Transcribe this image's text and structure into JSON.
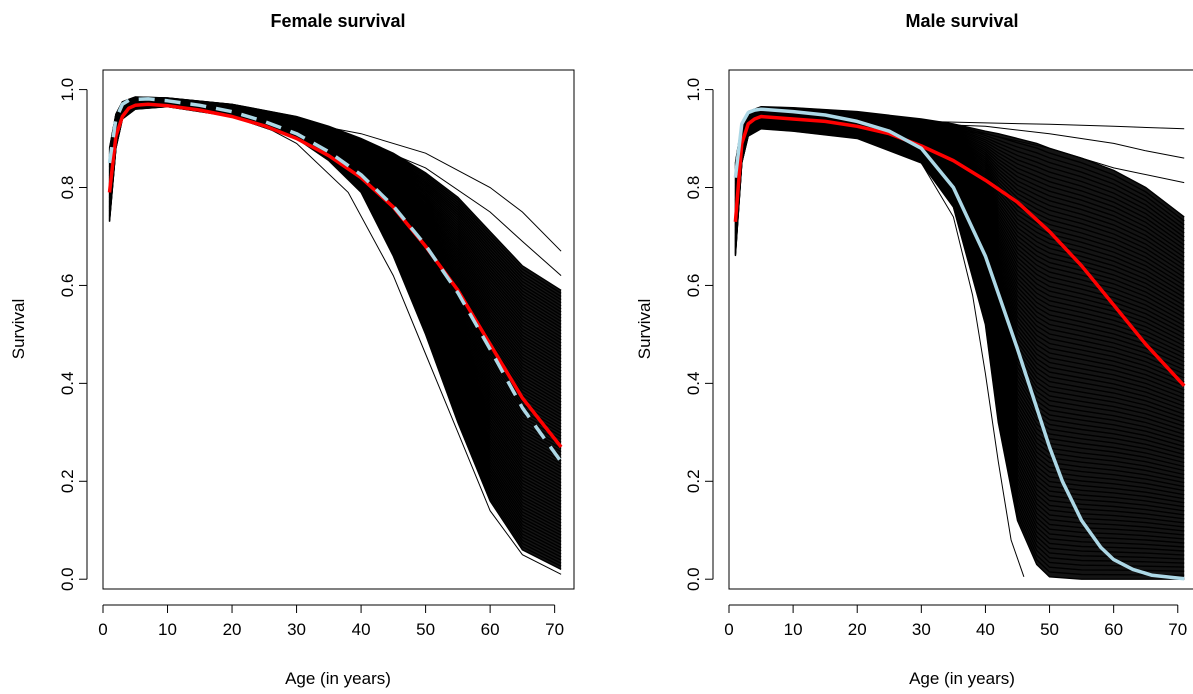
{
  "chart_data": [
    {
      "type": "line",
      "title": "Female survival",
      "xlabel": "Age (in years)",
      "ylabel": "Survival",
      "xlim": [
        0,
        73
      ],
      "ylim": [
        -0.02,
        1.04
      ],
      "xticks": [
        "0",
        "10",
        "20",
        "30",
        "40",
        "50",
        "60",
        "70"
      ],
      "yticks": [
        "0.0",
        "0.2",
        "0.4",
        "0.6",
        "0.8",
        "1.0"
      ],
      "grid": false,
      "legend": "none",
      "envelope": {
        "color": "#000000",
        "x": [
          1,
          2,
          3,
          5,
          10,
          20,
          30,
          35,
          40,
          45,
          50,
          55,
          60,
          65,
          71
        ],
        "upper": [
          0.88,
          0.95,
          0.975,
          0.985,
          0.983,
          0.97,
          0.945,
          0.925,
          0.9,
          0.87,
          0.83,
          0.78,
          0.71,
          0.64,
          0.59
        ],
        "lower": [
          0.73,
          0.88,
          0.94,
          0.96,
          0.965,
          0.945,
          0.9,
          0.855,
          0.79,
          0.66,
          0.5,
          0.32,
          0.16,
          0.06,
          0.02
        ]
      },
      "outliers": [
        {
          "x": [
            30,
            40,
            50,
            60,
            65,
            71
          ],
          "y": [
            0.935,
            0.91,
            0.87,
            0.8,
            0.75,
            0.67
          ]
        },
        {
          "x": [
            30,
            40,
            50,
            60,
            65,
            71
          ],
          "y": [
            0.925,
            0.895,
            0.84,
            0.75,
            0.69,
            0.62
          ]
        },
        {
          "x": [
            30,
            38,
            45,
            50,
            55,
            60,
            65,
            71
          ],
          "y": [
            0.89,
            0.79,
            0.62,
            0.46,
            0.3,
            0.14,
            0.05,
            0.01
          ]
        }
      ],
      "series": [
        {
          "color": "#ff0000",
          "style": "solid",
          "x": [
            1,
            2,
            3,
            4,
            5,
            7,
            10,
            15,
            20,
            25,
            30,
            35,
            40,
            45,
            50,
            55,
            60,
            65,
            68,
            71
          ],
          "y": [
            0.79,
            0.905,
            0.945,
            0.962,
            0.968,
            0.97,
            0.967,
            0.958,
            0.945,
            0.926,
            0.9,
            0.865,
            0.82,
            0.76,
            0.68,
            0.59,
            0.48,
            0.37,
            0.32,
            0.27
          ]
        },
        {
          "color": "#add8e6",
          "style": "dashed",
          "x": [
            1,
            2,
            3,
            4,
            5,
            7,
            10,
            15,
            20,
            25,
            30,
            35,
            40,
            45,
            50,
            55,
            60,
            65,
            68,
            71
          ],
          "y": [
            0.85,
            0.94,
            0.97,
            0.978,
            0.98,
            0.981,
            0.977,
            0.968,
            0.955,
            0.935,
            0.91,
            0.873,
            0.826,
            0.762,
            0.682,
            0.585,
            0.47,
            0.35,
            0.295,
            0.24
          ]
        }
      ]
    },
    {
      "type": "line",
      "title": "Male survival",
      "xlabel": "Age (in years)",
      "ylabel": "Survival",
      "xlim": [
        0,
        73
      ],
      "ylim": [
        -0.02,
        1.04
      ],
      "xticks": [
        "0",
        "10",
        "20",
        "30",
        "40",
        "50",
        "60",
        "70"
      ],
      "yticks": [
        "0.0",
        "0.2",
        "0.4",
        "0.6",
        "0.8",
        "1.0"
      ],
      "grid": false,
      "legend": "none",
      "envelope": {
        "color": "#000000",
        "x": [
          1,
          2,
          3,
          5,
          10,
          20,
          30,
          35,
          40,
          42,
          45,
          48,
          50,
          55,
          60,
          65,
          71
        ],
        "upper": [
          0.85,
          0.93,
          0.955,
          0.965,
          0.963,
          0.955,
          0.94,
          0.93,
          0.915,
          0.91,
          0.9,
          0.89,
          0.88,
          0.86,
          0.835,
          0.8,
          0.74
        ],
        "lower": [
          0.66,
          0.85,
          0.905,
          0.92,
          0.915,
          0.9,
          0.85,
          0.76,
          0.52,
          0.32,
          0.12,
          0.03,
          0.005,
          0,
          0,
          0,
          0
        ]
      },
      "outliers": [
        {
          "x": [
            30,
            40,
            50,
            60,
            71
          ],
          "y": [
            0.935,
            0.932,
            0.929,
            0.925,
            0.92
          ]
        },
        {
          "x": [
            30,
            40,
            50,
            60,
            65,
            71
          ],
          "y": [
            0.93,
            0.925,
            0.91,
            0.89,
            0.875,
            0.86
          ]
        },
        {
          "x": [
            30,
            40,
            50,
            60,
            71
          ],
          "y": [
            0.925,
            0.91,
            0.88,
            0.84,
            0.81
          ]
        },
        {
          "x": [
            30,
            35,
            38,
            40,
            42,
            44,
            46
          ],
          "y": [
            0.85,
            0.74,
            0.58,
            0.42,
            0.24,
            0.08,
            0.005
          ]
        }
      ],
      "series": [
        {
          "color": "#ff0000",
          "style": "solid",
          "x": [
            1,
            2,
            3,
            4,
            5,
            10,
            15,
            20,
            25,
            30,
            35,
            40,
            45,
            50,
            55,
            60,
            65,
            71
          ],
          "y": [
            0.73,
            0.89,
            0.93,
            0.94,
            0.945,
            0.94,
            0.935,
            0.925,
            0.91,
            0.885,
            0.855,
            0.815,
            0.77,
            0.71,
            0.64,
            0.56,
            0.48,
            0.395
          ]
        },
        {
          "color": "#add8e6",
          "style": "solid",
          "x": [
            1,
            2,
            3,
            4,
            5,
            10,
            15,
            20,
            25,
            30,
            35,
            40,
            45,
            48,
            50,
            52,
            55,
            58,
            60,
            63,
            66,
            71
          ],
          "y": [
            0.82,
            0.93,
            0.953,
            0.958,
            0.96,
            0.955,
            0.948,
            0.935,
            0.915,
            0.88,
            0.8,
            0.66,
            0.47,
            0.35,
            0.27,
            0.2,
            0.12,
            0.065,
            0.04,
            0.02,
            0.008,
            0.001
          ]
        }
      ]
    }
  ]
}
